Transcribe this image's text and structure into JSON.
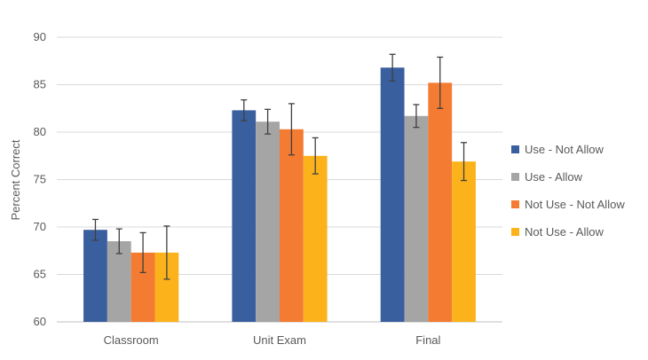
{
  "chart_data": {
    "type": "bar",
    "title": "",
    "xlabel": "",
    "ylabel": "Percent Correct",
    "ylim": [
      60,
      90
    ],
    "yticks": [
      60,
      65,
      70,
      75,
      80,
      85,
      90
    ],
    "grid": true,
    "legend_position": "right",
    "categories": [
      "Classroom",
      "Unit Exam",
      "Final"
    ],
    "series": [
      {
        "name": "Use - Not Allow",
        "color": "#3a5f9e",
        "values": [
          69.7,
          82.3,
          86.8
        ],
        "errors": [
          1.1,
          1.1,
          1.4
        ]
      },
      {
        "name": "Use - Allow",
        "color": "#a5a5a5",
        "values": [
          68.5,
          81.1,
          81.7
        ],
        "errors": [
          1.3,
          1.3,
          1.2
        ]
      },
      {
        "name": "Not Use - Not Allow",
        "color": "#f47b32",
        "values": [
          67.3,
          80.3,
          85.2
        ],
        "errors": [
          2.1,
          2.7,
          2.7
        ]
      },
      {
        "name": "Not Use - Allow",
        "color": "#fbb21b",
        "values": [
          67.3,
          77.5,
          76.9
        ],
        "errors": [
          2.8,
          1.9,
          2.0
        ]
      }
    ]
  }
}
